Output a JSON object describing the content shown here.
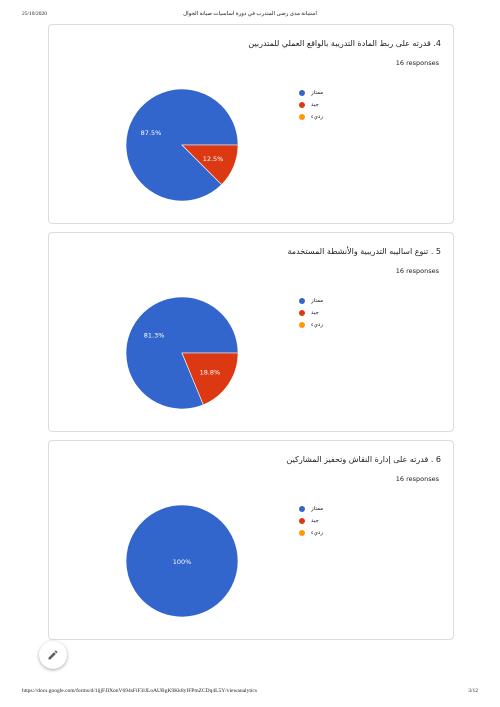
{
  "header": {
    "date": "25/10/2020",
    "title": "استبانة مدى رضى المتدرب في دورة اساسيات صيانة الجوال"
  },
  "footer": {
    "url": "https://docs.google.com/forms/d/1ijjFJIXonV694sFiF3lJLoAUBgK9Kk8yIFPmZCDq4L5Y/viewanalytics",
    "page": "3/12"
  },
  "legend": {
    "excellent": "ممتاز",
    "good": "جيد",
    "bad": "رديء"
  },
  "colors": {
    "excellent": "#3366cc",
    "good": "#dc3912",
    "bad": "#ff9900"
  },
  "chart_data": [
    {
      "type": "pie",
      "title": "4. قدرته على ربط المادة التدريبة بالواقع العملي للمتدربين",
      "responses": "16 responses",
      "categories": [
        "ممتاز",
        "جيد",
        "رديء"
      ],
      "values": [
        87.5,
        12.5,
        0
      ],
      "labels": [
        "87.5%",
        "12.5%",
        ""
      ]
    },
    {
      "type": "pie",
      "title": "5 . تنوع اساليبه التدريبية والأنشطة المستخدمة",
      "responses": "16 responses",
      "categories": [
        "ممتاز",
        "جيد",
        "رديء"
      ],
      "values": [
        81.3,
        18.8,
        0
      ],
      "labels": [
        "81.3%",
        "18.8%",
        ""
      ]
    },
    {
      "type": "pie",
      "title": "6 . قدرته على إدارة النقاش وتحفيز المشاركين",
      "responses": "16 responses",
      "categories": [
        "ممتاز",
        "جيد",
        "رديء"
      ],
      "values": [
        100,
        0,
        0
      ],
      "labels": [
        "100%",
        "",
        ""
      ]
    }
  ]
}
